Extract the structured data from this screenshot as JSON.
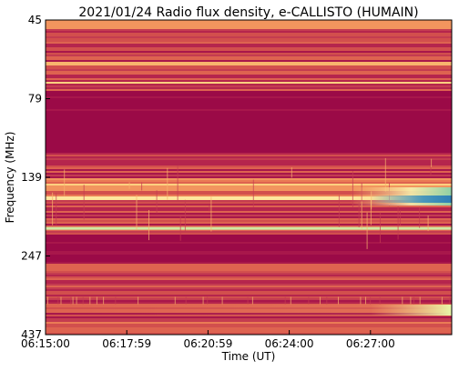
{
  "chart_data": {
    "type": "heatmap",
    "title": "2021/01/24  Radio flux density, e-CALLISTO (HUMAIN)",
    "xlabel": "Time (UT)",
    "ylabel": "Frequency (MHz)",
    "x_ticks": [
      "06:15:00",
      "06:17:59",
      "06:20:59",
      "06:24:00",
      "06:27:00"
    ],
    "y_ticks": [
      "45",
      "79",
      "139",
      "247",
      "437"
    ],
    "y_range_mhz": [
      45,
      437
    ],
    "colormap": "Spectral (dark red = low flux, yellow/green/blue = high flux)",
    "colors": {
      "background": "#9b0a47",
      "low": "#a01748",
      "mid": "#d8514c",
      "high": "#fdd07f",
      "peak": "#2f7fb6"
    }
  }
}
